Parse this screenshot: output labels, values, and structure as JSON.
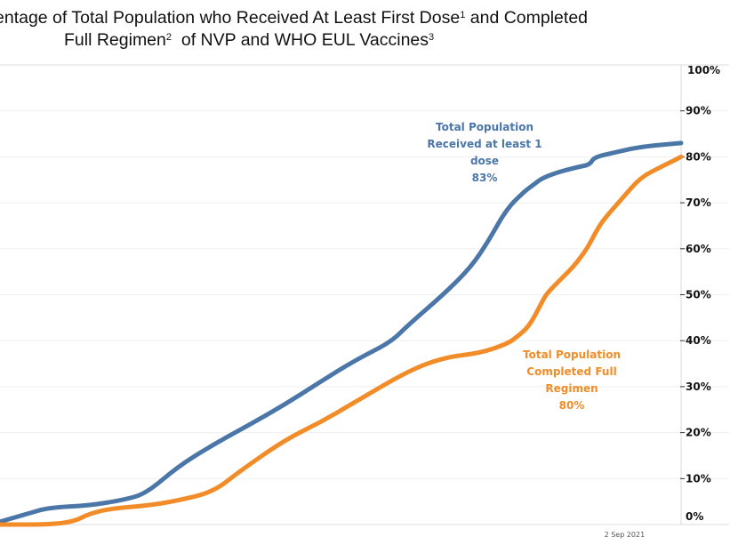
{
  "chart_data": {
    "type": "line",
    "title_line1": "entage of Total Population who Received At Least First Dose",
    "title_line1_sup": "1",
    "title_line1_tail": " and Completed",
    "title_line2": "Full Regimen",
    "title_line2_sup": "2",
    "title_line2_mid": "  of NVP and WHO EUL Vaccines",
    "title_line2_sup2": "3",
    "xlabel": "",
    "ylabel": "",
    "x_tick_labels": [
      {
        "x": 0.93,
        "label": "2 Sep 2021"
      }
    ],
    "x_range": [
      0,
      1
    ],
    "ylim": [
      0,
      100
    ],
    "y_ticks": [
      0,
      10,
      20,
      30,
      40,
      50,
      60,
      70,
      80,
      90,
      100
    ],
    "y_tick_labels": [
      "0%",
      "10%",
      "20%",
      "30%",
      "40%",
      "50%",
      "60%",
      "70%",
      "80%",
      "90%",
      "100%"
    ],
    "y_axis_side": "right",
    "grid": true,
    "series": [
      {
        "name": "Total Population Received at least 1 dose",
        "color": "#4a76a8",
        "final_value": 83,
        "x": [
          0,
          0.039,
          0.072,
          0.13,
          0.183,
          0.215,
          0.261,
          0.313,
          0.366,
          0.418,
          0.47,
          0.522,
          0.574,
          0.6,
          0.653,
          0.692,
          0.718,
          0.744,
          0.77,
          0.783,
          0.796,
          0.822,
          0.849,
          0.866,
          0.872,
          0.901,
          0.94,
          1.0
        ],
        "values": [
          0.6,
          2.3,
          3.7,
          4.1,
          5.4,
          6.8,
          12.6,
          17.4,
          21.7,
          26.1,
          31.0,
          35.8,
          39.7,
          43.5,
          50.3,
          56.1,
          61.9,
          68.7,
          72.5,
          73.9,
          75.4,
          76.8,
          77.8,
          78.3,
          79.9,
          80.9,
          82.2,
          83.0
        ]
      },
      {
        "name": "Total Population Completed Full Regimen",
        "color": "#f28c28",
        "final_value": 80,
        "x": [
          0,
          0.078,
          0.111,
          0.13,
          0.163,
          0.215,
          0.261,
          0.313,
          0.352,
          0.418,
          0.47,
          0.522,
          0.6,
          0.653,
          0.705,
          0.744,
          0.757,
          0.777,
          0.796,
          0.803,
          0.822,
          0.842,
          0.862,
          0.875,
          0.888,
          0.914,
          0.94,
          0.973,
          1.0
        ],
        "values": [
          0,
          0,
          0.8,
          2.3,
          3.5,
          4.1,
          5.2,
          7.1,
          11.6,
          18.4,
          22.2,
          26.7,
          33.5,
          36.4,
          37.3,
          39.3,
          40.6,
          43.1,
          48.5,
          50.3,
          53.2,
          56.1,
          60.0,
          63.8,
          66.7,
          71.0,
          75.5,
          78.0,
          80.0
        ]
      }
    ],
    "annotations": [
      {
        "series": 0,
        "lines": [
          "Total Population",
          "Received at least 1",
          "dose",
          "83%"
        ]
      },
      {
        "series": 1,
        "lines": [
          "Total Population",
          "Completed Full",
          "Regimen",
          "80%"
        ]
      }
    ]
  }
}
